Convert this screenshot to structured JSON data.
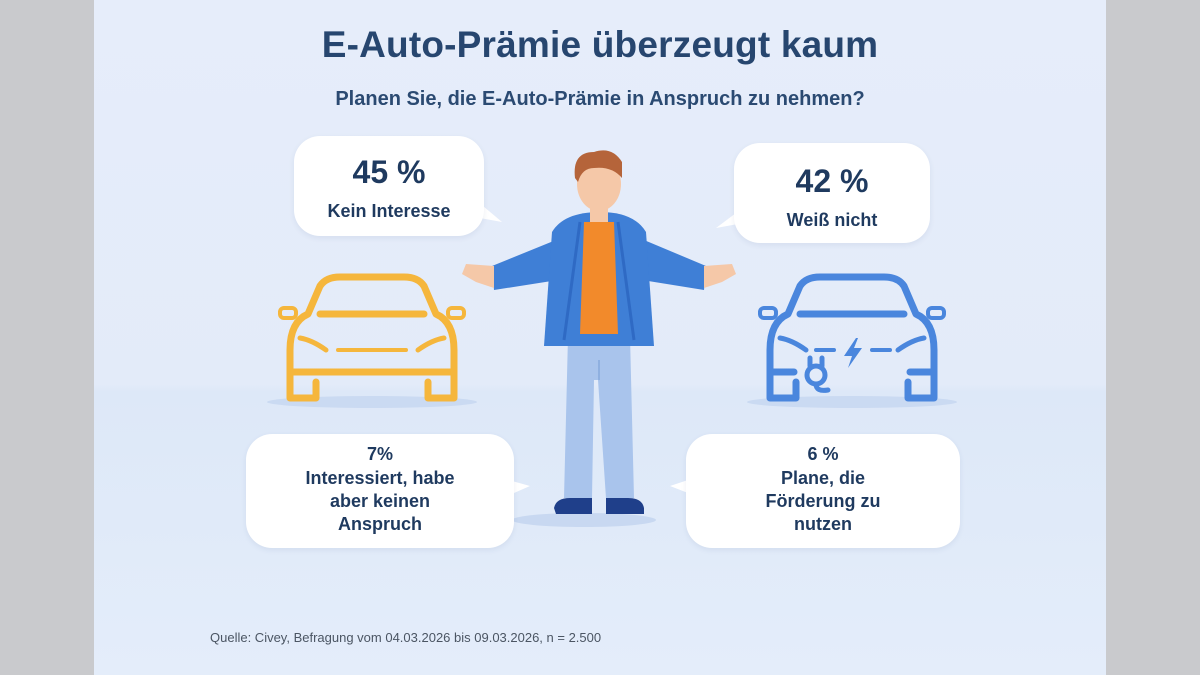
{
  "title": "E-Auto-Prämie überzeugt kaum",
  "subtitle": "Planen Sie, die E-Auto-Prämie in Anspruch zu nehmen?",
  "chart_data": {
    "type": "infographic",
    "title": "E-Auto-Prämie überzeugt kaum",
    "question": "Planen Sie, die E-Auto-Prämie in Anspruch zu nehmen?",
    "unit": "%",
    "series": [
      {
        "label": "Kein Interesse",
        "value": 45,
        "display": "45 %"
      },
      {
        "label": "Weiß nicht",
        "value": 42,
        "display": "42 %"
      },
      {
        "label": "Interessiert, habe aber keinen Anspruch",
        "value": 7,
        "display": "7%"
      },
      {
        "label": "Plane, die Förderung zu nutzen",
        "value": 6,
        "display": "6 %"
      }
    ]
  },
  "source": "Quelle: Civey, Befragung vom 04.03.2026 bis 09.03.2026, n = 2.500",
  "colors": {
    "title": "#27466f",
    "combustion_car": "#f5b63c",
    "electric_car": "#4a86dd",
    "jacket": "#3f7fd6",
    "shirt": "#f28a2b",
    "pants": "#a9c4ec",
    "hair": "#b5643a",
    "skin": "#f5c8a8"
  },
  "icons": [
    "combustion-car-icon",
    "electric-car-icon",
    "person-shrugging-icon",
    "lightning-bolt-icon",
    "charging-plug-icon"
  ]
}
